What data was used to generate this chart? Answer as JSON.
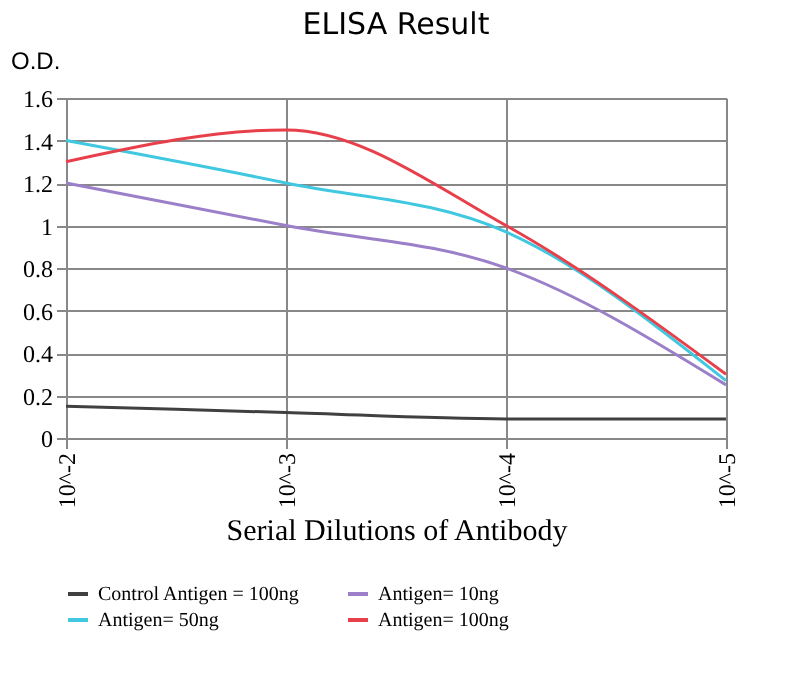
{
  "chart_data": {
    "type": "line",
    "title": "ELISA Result",
    "ylabel": "O.D.",
    "xlabel": "Serial Dilutions  of Antibody",
    "categories": [
      "10^-2",
      "10^-3",
      "10^-4",
      "10^-5"
    ],
    "series": [
      {
        "name": "Control Antigen = 100ng",
        "color": "#404040",
        "values": [
          0.15,
          0.12,
          0.09,
          0.09
        ]
      },
      {
        "name": "Antigen= 10ng",
        "color": "#9b7fc8",
        "values": [
          1.2,
          1.0,
          0.8,
          0.25
        ]
      },
      {
        "name": "Antigen= 50ng",
        "color": "#3fc8e0",
        "values": [
          1.4,
          1.2,
          0.97,
          0.27
        ]
      },
      {
        "name": "Antigen= 100ng",
        "color": "#e8404a",
        "values": [
          1.3,
          1.45,
          1.0,
          0.3
        ]
      }
    ],
    "ylim": [
      0,
      1.6
    ],
    "yticks": [
      0,
      0.2,
      0.4,
      0.6,
      0.8,
      1,
      1.2,
      1.4,
      1.6
    ],
    "grid": true,
    "legend": "bottom",
    "marker": "none",
    "line_style": "solid"
  }
}
